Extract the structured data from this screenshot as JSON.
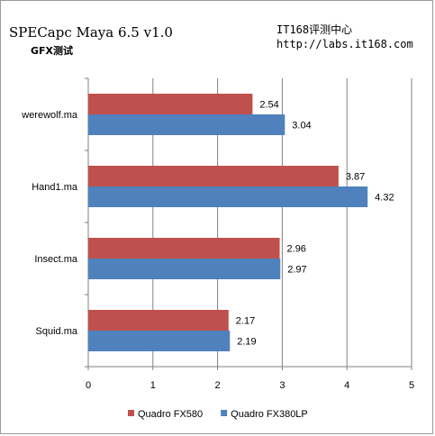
{
  "header": {
    "title": "SPECapc Maya 6.5 v1.0",
    "subtitle": "GFX测试",
    "source_name": "IT168评测中心",
    "source_url": "http://labs.it168.com"
  },
  "chart_data": {
    "type": "bar",
    "orientation": "horizontal",
    "categories": [
      "werewolf.ma",
      "Hand1.ma",
      "Insect.ma",
      "Squid.ma"
    ],
    "series": [
      {
        "name": "Quadro FX580",
        "color": "#c0504d",
        "values": [
          2.54,
          3.87,
          2.96,
          2.17
        ]
      },
      {
        "name": "Quadro FX380LP",
        "color": "#4f81bd",
        "values": [
          3.04,
          4.32,
          2.97,
          2.19
        ]
      }
    ],
    "xlim": [
      0,
      5
    ],
    "xticks": [
      0,
      1,
      2,
      3,
      4,
      5
    ],
    "grid": true,
    "legend_position": "bottom"
  }
}
